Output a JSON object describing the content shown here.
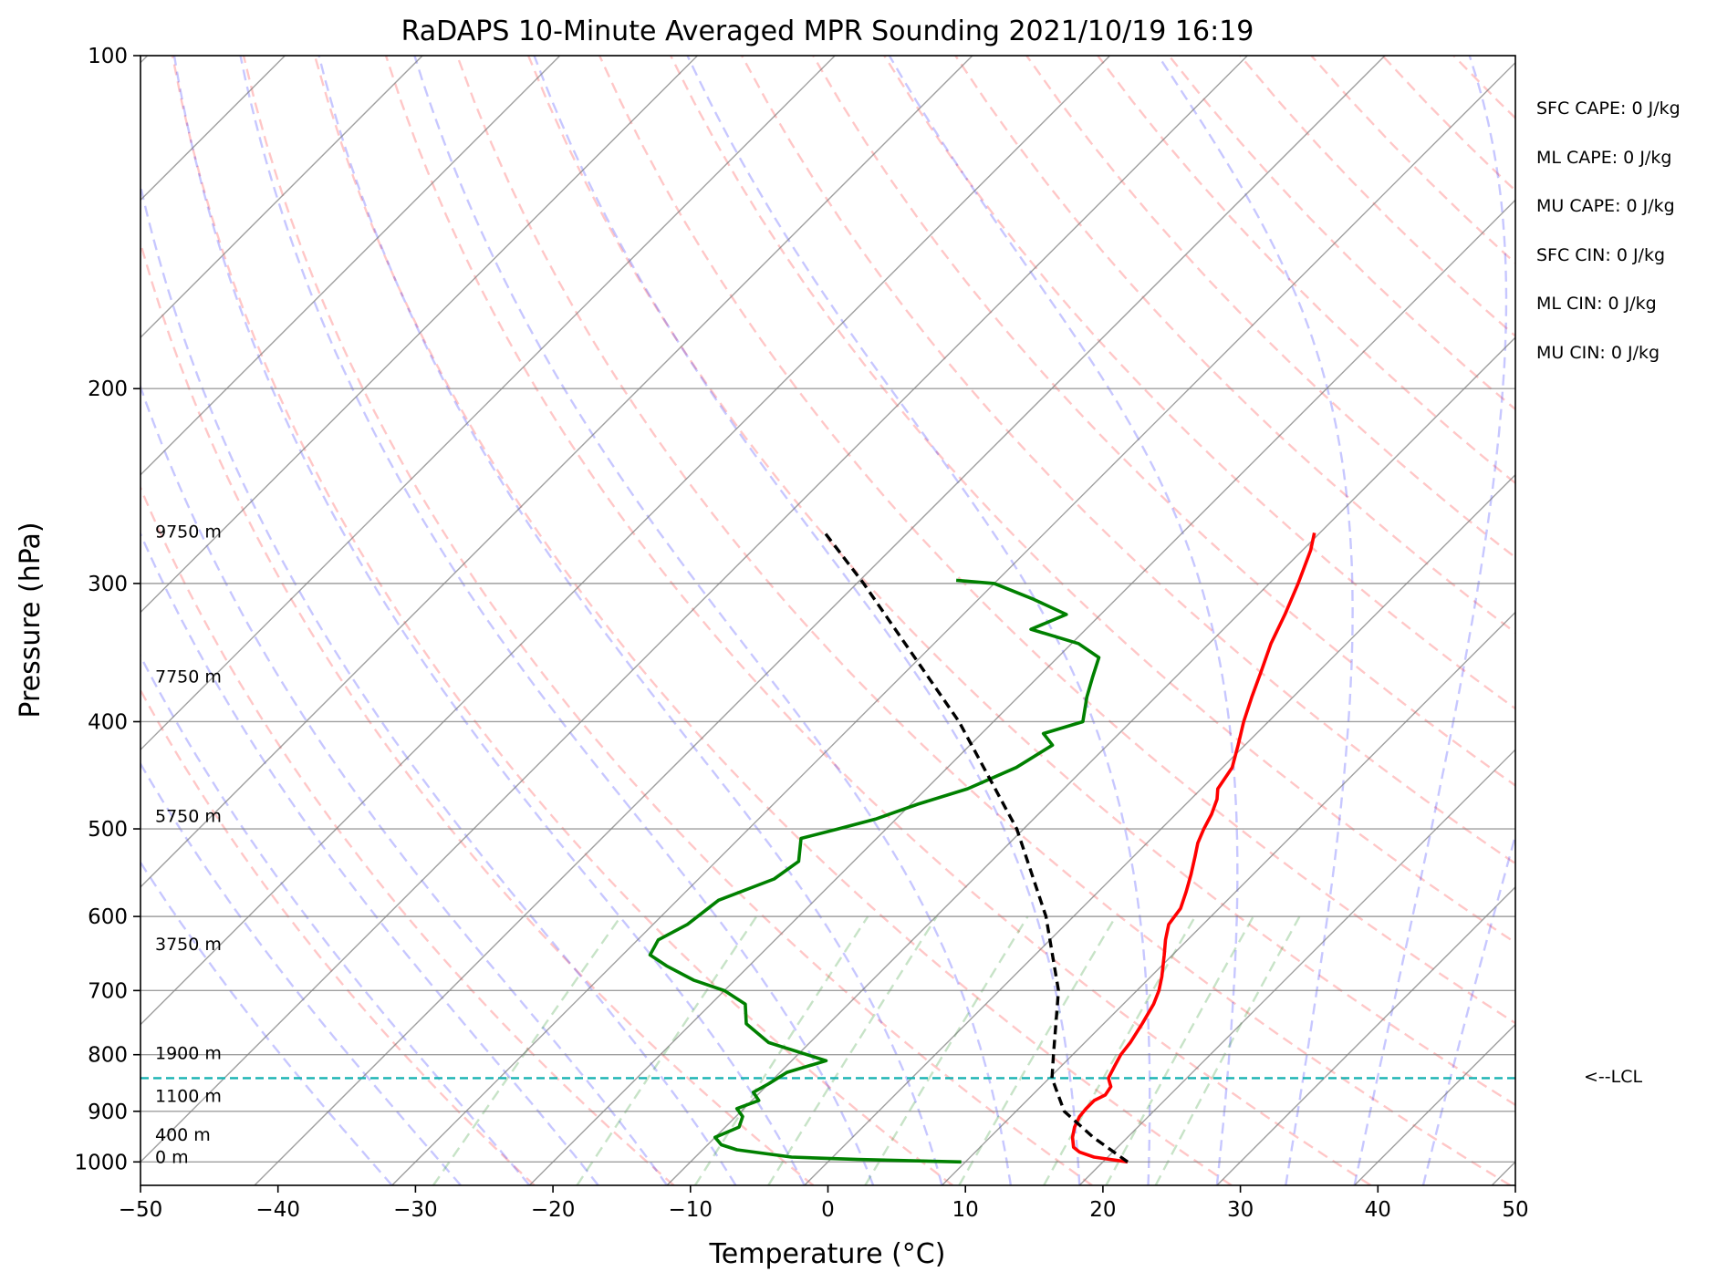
{
  "chart_data": {
    "type": "skew-t",
    "title": "RaDAPS 10-Minute Averaged MPR Sounding 2021/10/19 16:19",
    "xlabel": "Temperature (°C)",
    "ylabel": "Pressure (hPa)",
    "xlim": [
      -50,
      50
    ],
    "ylim": [
      1050,
      100
    ],
    "x_ticks": [
      "−50",
      "−40",
      "−30",
      "−20",
      "−10",
      "0",
      "10",
      "20",
      "30",
      "40",
      "50"
    ],
    "y_ticks": [
      "100",
      "200",
      "300",
      "400",
      "500",
      "600",
      "700",
      "800",
      "900",
      "1000"
    ],
    "height_labels": [
      "0 m",
      "400 m",
      "1100 m",
      "1900 m",
      "3750 m",
      "5750 m",
      "7750 m",
      "9750 m"
    ],
    "grid": true,
    "lcl": {
      "pressure": 840,
      "label": "<--LCL"
    },
    "stats": [
      "SFC CAPE: 0 J/kg",
      "ML CAPE: 0 J/kg",
      "MU CAPE: 0 J/kg",
      "SFC CIN: 0 J/kg",
      "ML CIN: 0 J/kg",
      "MU CIN: 0 J/kg"
    ],
    "series": [
      {
        "role": "temperature",
        "color": "#ff0000",
        "points": [
          [
            1000,
            21.8
          ],
          [
            990,
            19.0
          ],
          [
            980,
            17.6
          ],
          [
            970,
            16.8
          ],
          [
            950,
            16.0
          ],
          [
            930,
            15.4
          ],
          [
            910,
            15.0
          ],
          [
            895,
            14.9
          ],
          [
            880,
            14.9
          ],
          [
            870,
            15.3
          ],
          [
            855,
            15.1
          ],
          [
            840,
            14.3
          ],
          [
            820,
            13.9
          ],
          [
            800,
            13.5
          ],
          [
            780,
            13.3
          ],
          [
            750,
            12.8
          ],
          [
            720,
            12.2
          ],
          [
            700,
            11.6
          ],
          [
            680,
            10.8
          ],
          [
            650,
            9.4
          ],
          [
            630,
            8.4
          ],
          [
            610,
            7.5
          ],
          [
            590,
            7.2
          ],
          [
            570,
            6.4
          ],
          [
            550,
            5.5
          ],
          [
            530,
            4.5
          ],
          [
            515,
            3.7
          ],
          [
            500,
            3.1
          ],
          [
            485,
            2.6
          ],
          [
            470,
            1.9
          ],
          [
            460,
            1.2
          ],
          [
            440,
            0.7
          ],
          [
            420,
            -0.5
          ],
          [
            400,
            -1.8
          ],
          [
            380,
            -3.0
          ],
          [
            360,
            -4.2
          ],
          [
            340,
            -5.5
          ],
          [
            320,
            -6.6
          ],
          [
            300,
            -7.9
          ],
          [
            280,
            -9.4
          ],
          [
            270,
            -10.4
          ]
        ]
      },
      {
        "role": "dewpoint",
        "color": "#008000",
        "points": [
          [
            1000,
            9.7
          ],
          [
            995,
            2.0
          ],
          [
            990,
            -3.0
          ],
          [
            975,
            -7.5
          ],
          [
            965,
            -9.0
          ],
          [
            950,
            -10.0
          ],
          [
            930,
            -9.0
          ],
          [
            910,
            -9.5
          ],
          [
            895,
            -10.5
          ],
          [
            880,
            -9.5
          ],
          [
            865,
            -10.5
          ],
          [
            850,
            -10.0
          ],
          [
            830,
            -9.5
          ],
          [
            810,
            -7.5
          ],
          [
            780,
            -13.0
          ],
          [
            750,
            -16.0
          ],
          [
            720,
            -17.5
          ],
          [
            700,
            -20.0
          ],
          [
            685,
            -23.0
          ],
          [
            665,
            -26.0
          ],
          [
            650,
            -28.0
          ],
          [
            630,
            -28.5
          ],
          [
            610,
            -27.5
          ],
          [
            580,
            -27.0
          ],
          [
            555,
            -24.5
          ],
          [
            535,
            -24.0
          ],
          [
            510,
            -25.5
          ],
          [
            500,
            -23.5
          ],
          [
            490,
            -21.5
          ],
          [
            475,
            -19.5
          ],
          [
            460,
            -17.0
          ],
          [
            440,
            -15.0
          ],
          [
            420,
            -14.0
          ],
          [
            410,
            -15.5
          ],
          [
            400,
            -13.5
          ],
          [
            380,
            -15.0
          ],
          [
            365,
            -16.0
          ],
          [
            350,
            -17.0
          ],
          [
            340,
            -19.5
          ],
          [
            330,
            -24.0
          ],
          [
            320,
            -22.5
          ],
          [
            310,
            -26.0
          ],
          [
            300,
            -30.0
          ],
          [
            298,
            -33.0
          ]
        ]
      },
      {
        "role": "parcel",
        "color": "#000000",
        "points": [
          [
            1000,
            21.8
          ],
          [
            950,
            17.5
          ],
          [
            900,
            13.5
          ],
          [
            840,
            10.2
          ],
          [
            800,
            8.6
          ],
          [
            700,
            4.3
          ],
          [
            600,
            -2.0
          ],
          [
            500,
            -10.5
          ],
          [
            400,
            -22.5
          ],
          [
            300,
            -39.5
          ],
          [
            270,
            -46.0
          ]
        ]
      }
    ]
  }
}
